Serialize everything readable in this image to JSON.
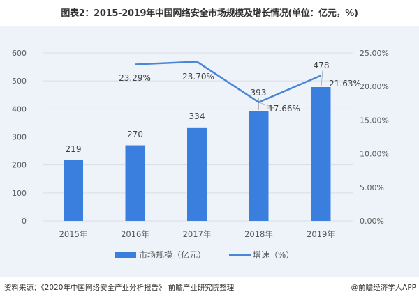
{
  "title": "图表2：2015-2019年中国网络安全市场规模及增长情况(单位：亿元，%)",
  "footer": {
    "source": "资料来源：《2020年中国网络安全产业分析报告》 前瞻产业研究院整理",
    "credit": "@前瞻经济学人APP"
  },
  "colors": {
    "bar": "#3b7fde",
    "line": "#4a86d8",
    "panel_bg": "#eef2f9",
    "grid": "#d9dee6",
    "text": "#595959"
  },
  "legend": [
    {
      "label": "市场规模（亿元）",
      "type": "bar"
    },
    {
      "label": "增速（%）",
      "type": "line"
    }
  ],
  "chart_data": {
    "type": "bar",
    "title": "图表2：2015-2019年中国网络安全市场规模及增长情况(单位：亿元，%)",
    "categories": [
      "2015年",
      "2016年",
      "2017年",
      "2018年",
      "2019年"
    ],
    "series": [
      {
        "name": "市场规模（亿元）",
        "type": "bar",
        "axis": "left",
        "values": [
          219,
          270,
          334,
          393,
          478
        ]
      },
      {
        "name": "增速（%）",
        "type": "line",
        "axis": "right",
        "values": [
          null,
          23.29,
          23.7,
          17.66,
          21.63
        ]
      }
    ],
    "data_labels": {
      "bars": [
        "219",
        "270",
        "334",
        "393",
        "478"
      ],
      "line": [
        "",
        "23.29%",
        "23.70%",
        "17.66%",
        "21.63%"
      ]
    },
    "y_left": {
      "min": 0,
      "max": 600,
      "ticks": [
        "0",
        "100",
        "200",
        "300",
        "400",
        "500",
        "600"
      ]
    },
    "y_right": {
      "min": 0,
      "max": 25,
      "ticks": [
        "0.00%",
        "5.00%",
        "10.00%",
        "15.00%",
        "20.00%",
        "25.00%"
      ]
    },
    "xlabel": "",
    "ylabel": "",
    "grid": true,
    "legend_position": "bottom"
  }
}
